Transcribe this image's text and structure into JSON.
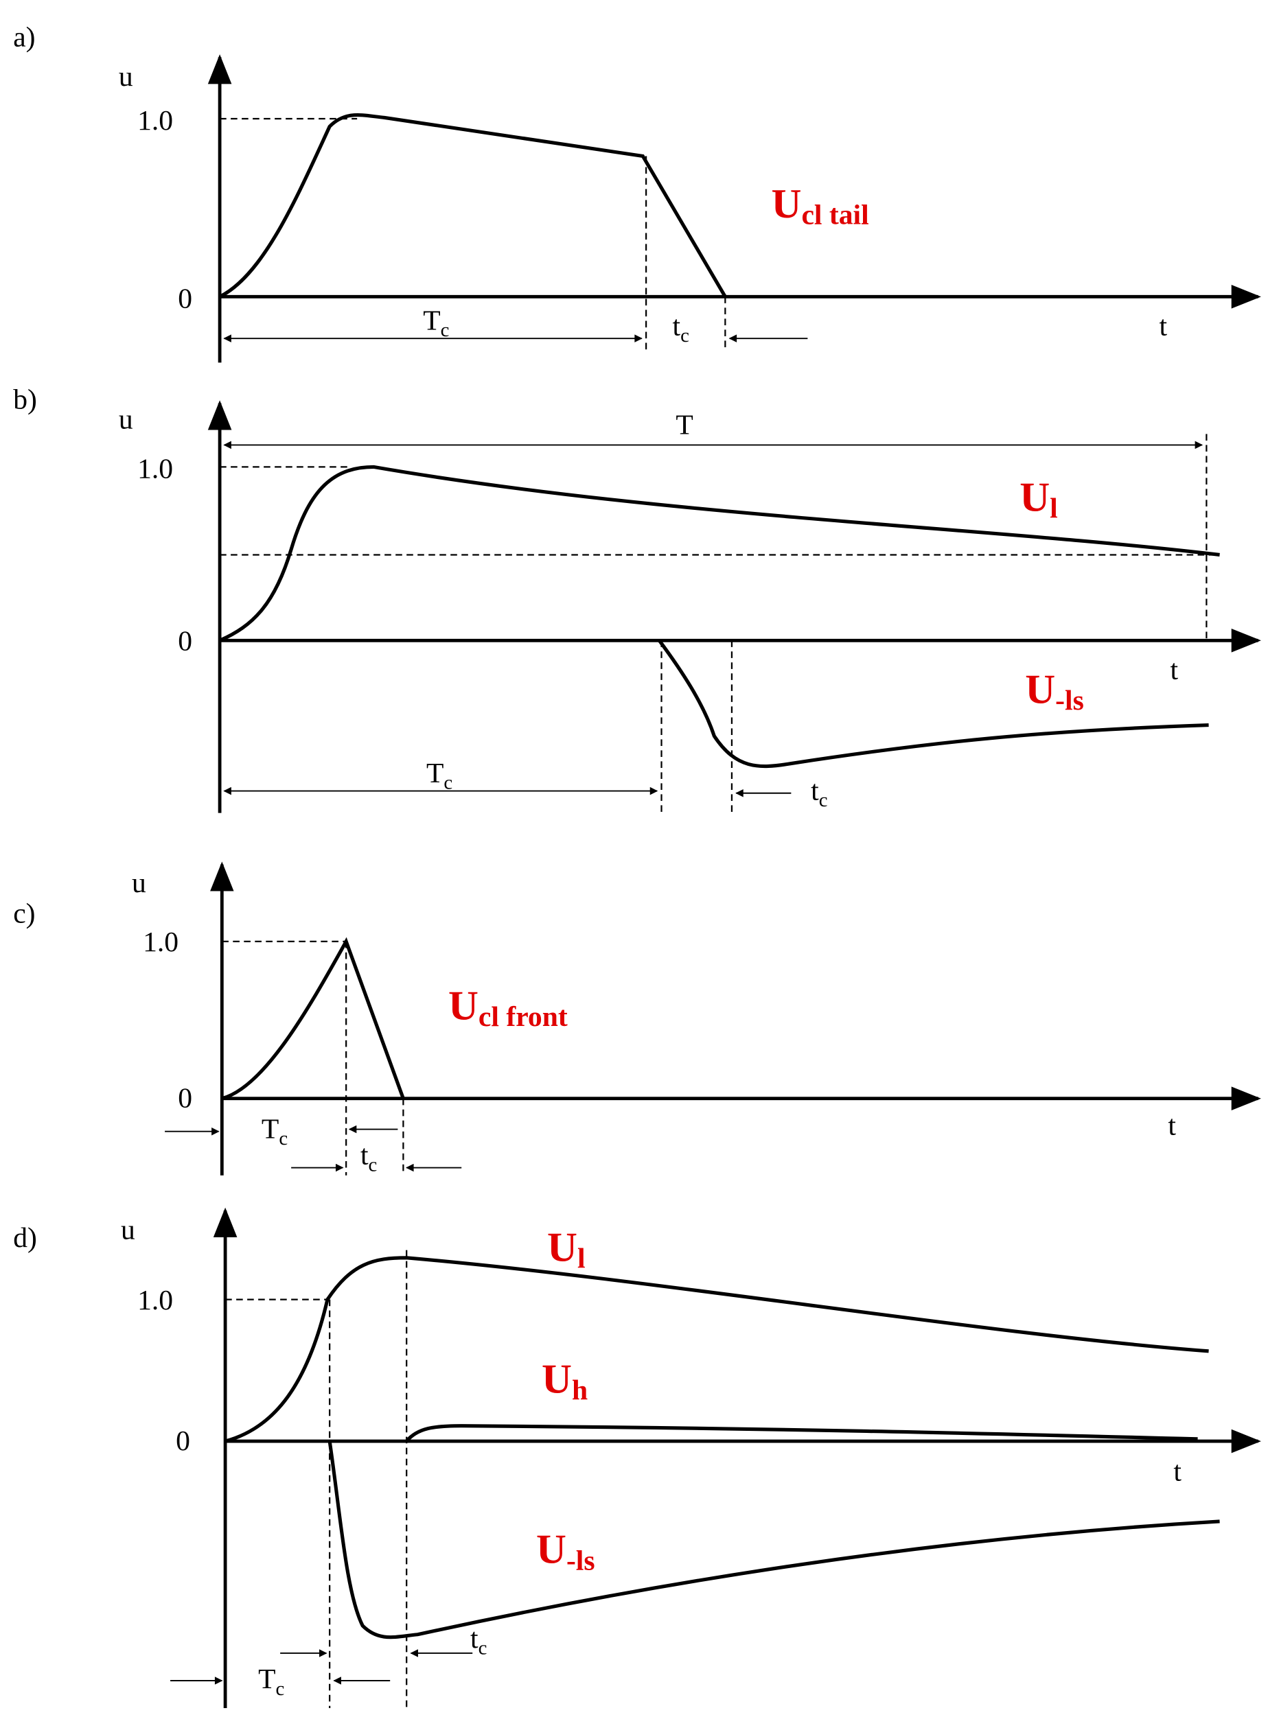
{
  "panels": [
    {
      "label": "a)",
      "y_axis": "u",
      "x_axis": "t",
      "tick_top": "1.0",
      "tick_zero": "0",
      "signals": [
        {
          "main": "U",
          "sub": "cl tail"
        }
      ],
      "intervals": [
        {
          "main": "T",
          "sub": "c"
        },
        {
          "main": "t",
          "sub": "c"
        }
      ]
    },
    {
      "label": "b)",
      "y_axis": "u",
      "x_axis": "t",
      "tick_top": "1.0",
      "tick_zero": "0",
      "period": "T",
      "signals": [
        {
          "main": "U",
          "sub": "l"
        },
        {
          "main": "U",
          "sub": "-ls"
        }
      ],
      "intervals": [
        {
          "main": "T",
          "sub": "c"
        },
        {
          "main": "t",
          "sub": "c"
        }
      ]
    },
    {
      "label": "c)",
      "y_axis": "u",
      "x_axis": "t",
      "tick_top": "1.0",
      "tick_zero": "0",
      "signals": [
        {
          "main": "U",
          "sub": "cl front"
        }
      ],
      "intervals": [
        {
          "main": "T",
          "sub": "c"
        },
        {
          "main": "t",
          "sub": "c"
        }
      ]
    },
    {
      "label": "d)",
      "y_axis": "u",
      "x_axis": "t",
      "tick_top": "1.0",
      "tick_zero": "0",
      "signals": [
        {
          "main": "U",
          "sub": "l"
        },
        {
          "main": "U",
          "sub": "h"
        },
        {
          "main": "U",
          "sub": "-ls"
        }
      ],
      "intervals": [
        {
          "main": "T",
          "sub": "c"
        },
        {
          "main": "t",
          "sub": "c"
        }
      ]
    }
  ]
}
